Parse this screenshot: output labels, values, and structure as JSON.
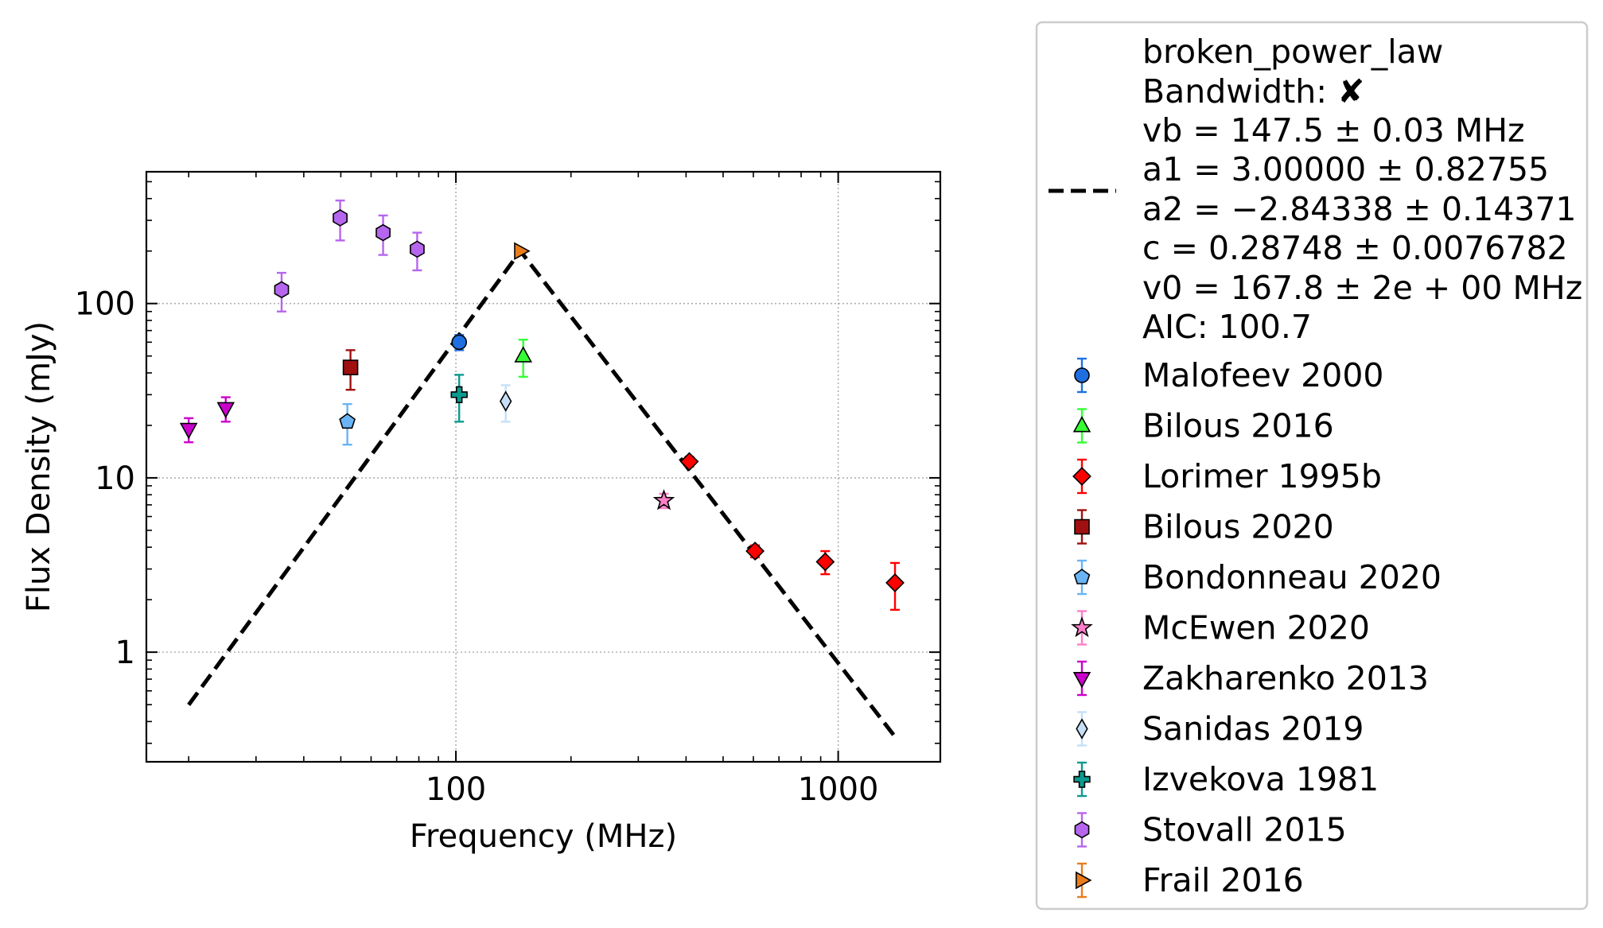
{
  "chart_data": {
    "type": "scatter",
    "title": "",
    "xlabel": "Frequency (MHz)",
    "ylabel": "Flux Density (mJy)",
    "xscale": "log",
    "yscale": "log",
    "xlim": [
      15.5,
      1850
    ],
    "ylim": [
      0.235,
      570
    ],
    "xticks": [
      100,
      1000
    ],
    "xtick_labels": [
      "100",
      "1000"
    ],
    "yticks": [
      1,
      10,
      100
    ],
    "ytick_labels": [
      "1",
      "10",
      "100"
    ],
    "grid": true,
    "legend_position": "outside-right",
    "fit": {
      "name": "broken_power_law",
      "bandwidth_line": "Bandwidth: ✘",
      "param_lines": [
        "vb = 147.5 ± 0.03 MHz",
        "a1 = 3.00000 ± 0.82755",
        "a2 = −2.84338 ± 0.14371",
        "c = 0.28748 ± 0.0076782",
        "v0 = 167.8 ± 2e + 00 MHz"
      ],
      "aic_line": "AIC: 100.7",
      "vb": 147.5,
      "a1": 3.0,
      "a2": -2.84338,
      "c": 0.28748,
      "v0": 167.8,
      "x_range": [
        20,
        1400
      ],
      "color": "#000000"
    },
    "series": [
      {
        "name": "Malofeev 2000",
        "marker": "circle",
        "color": "#1f6fe0",
        "ecolor": "#1f6fe0",
        "points": [
          {
            "x": 102,
            "y": 60,
            "err": 6
          }
        ]
      },
      {
        "name": "Bilous 2016",
        "marker": "triangle-up",
        "color": "#33ff33",
        "ecolor": "#33ff33",
        "points": [
          {
            "x": 150,
            "y": 50,
            "err": 12
          }
        ]
      },
      {
        "name": "Lorimer 1995b",
        "marker": "diamond",
        "color": "#ff0000",
        "ecolor": "#ff0000",
        "points": [
          {
            "x": 408,
            "y": 12.4,
            "err": 0.8
          },
          {
            "x": 606,
            "y": 3.8,
            "err": 0.3
          },
          {
            "x": 925,
            "y": 3.3,
            "err": 0.5
          },
          {
            "x": 1408,
            "y": 2.5,
            "err": 0.75
          }
        ]
      },
      {
        "name": "Bilous 2020",
        "marker": "square",
        "color": "#a01010",
        "ecolor": "#a01010",
        "points": [
          {
            "x": 53,
            "y": 43,
            "err": 11
          }
        ]
      },
      {
        "name": "Bondonneau 2020",
        "marker": "pentagon",
        "color": "#6ab4f5",
        "ecolor": "#6ab4f5",
        "points": [
          {
            "x": 52,
            "y": 21,
            "err": 5.5
          }
        ]
      },
      {
        "name": "McEwen 2020",
        "marker": "star",
        "color": "#ff7ec8",
        "ecolor": "#ff7ec8",
        "points": [
          {
            "x": 350,
            "y": 7.4,
            "err": 0.7
          }
        ]
      },
      {
        "name": "Zakharenko 2013",
        "marker": "triangle-down",
        "color": "#cc00cc",
        "ecolor": "#cc00cc",
        "points": [
          {
            "x": 20,
            "y": 19,
            "err": 3
          },
          {
            "x": 25,
            "y": 25,
            "err": 4
          }
        ]
      },
      {
        "name": "Sanidas 2019",
        "marker": "thin-diamond",
        "color": "#c6dff7",
        "ecolor": "#c6dff7",
        "points": [
          {
            "x": 135,
            "y": 27.5,
            "err": 6.5
          }
        ]
      },
      {
        "name": "Izvekova 1981",
        "marker": "plus",
        "color": "#0d9a8f",
        "ecolor": "#0d9a8f",
        "points": [
          {
            "x": 102,
            "y": 30,
            "err": 9
          }
        ]
      },
      {
        "name": "Stovall 2015",
        "marker": "hexagon",
        "color": "#b666ee",
        "ecolor": "#b666ee",
        "points": [
          {
            "x": 35,
            "y": 120,
            "err": 30
          },
          {
            "x": 49.8,
            "y": 310,
            "err": 80
          },
          {
            "x": 64.5,
            "y": 255,
            "err": 65
          },
          {
            "x": 79.2,
            "y": 205,
            "err": 50
          }
        ]
      },
      {
        "name": "Frail 2016",
        "marker": "triangle-right",
        "color": "#e87d1a",
        "ecolor": "#e87d1a",
        "points": [
          {
            "x": 147.5,
            "y": 200,
            "err": 0
          }
        ]
      }
    ]
  }
}
